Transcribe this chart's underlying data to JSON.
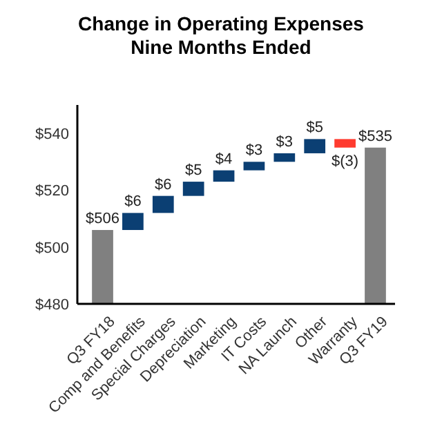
{
  "chart_data": {
    "type": "bar",
    "title": "Change in Operating Expenses\nNine Months Ended",
    "categories": [
      "Q3 FY18",
      "Comp and Benefits",
      "Special Charges",
      "Depreciation",
      "Marketing",
      "IT Costs",
      "NA Launch",
      "Other",
      "Warranty",
      "Q3 FY19"
    ],
    "values": [
      506,
      6,
      6,
      5,
      4,
      3,
      3,
      5,
      -3,
      535
    ],
    "base": [
      null,
      506,
      512,
      518,
      523,
      527,
      530,
      533,
      538,
      null
    ],
    "colors": [
      "#808080",
      "#0b3f73",
      "#0b3f73",
      "#0b3f73",
      "#0b3f73",
      "#0b3f73",
      "#0b3f73",
      "#0b3f73",
      "#ff3b2f",
      "#808080"
    ],
    "value_labels": [
      "$506",
      "$6",
      "$6",
      "$5",
      "$4",
      "$3",
      "$3",
      "$5",
      "$(3)",
      "$535"
    ],
    "ylim": [
      480,
      550
    ],
    "yticks": [
      {
        "value": 480,
        "label": "$480"
      },
      {
        "value": 500,
        "label": "$500"
      },
      {
        "value": 520,
        "label": "$520"
      },
      {
        "value": 540,
        "label": "$540"
      }
    ],
    "grid": false
  }
}
